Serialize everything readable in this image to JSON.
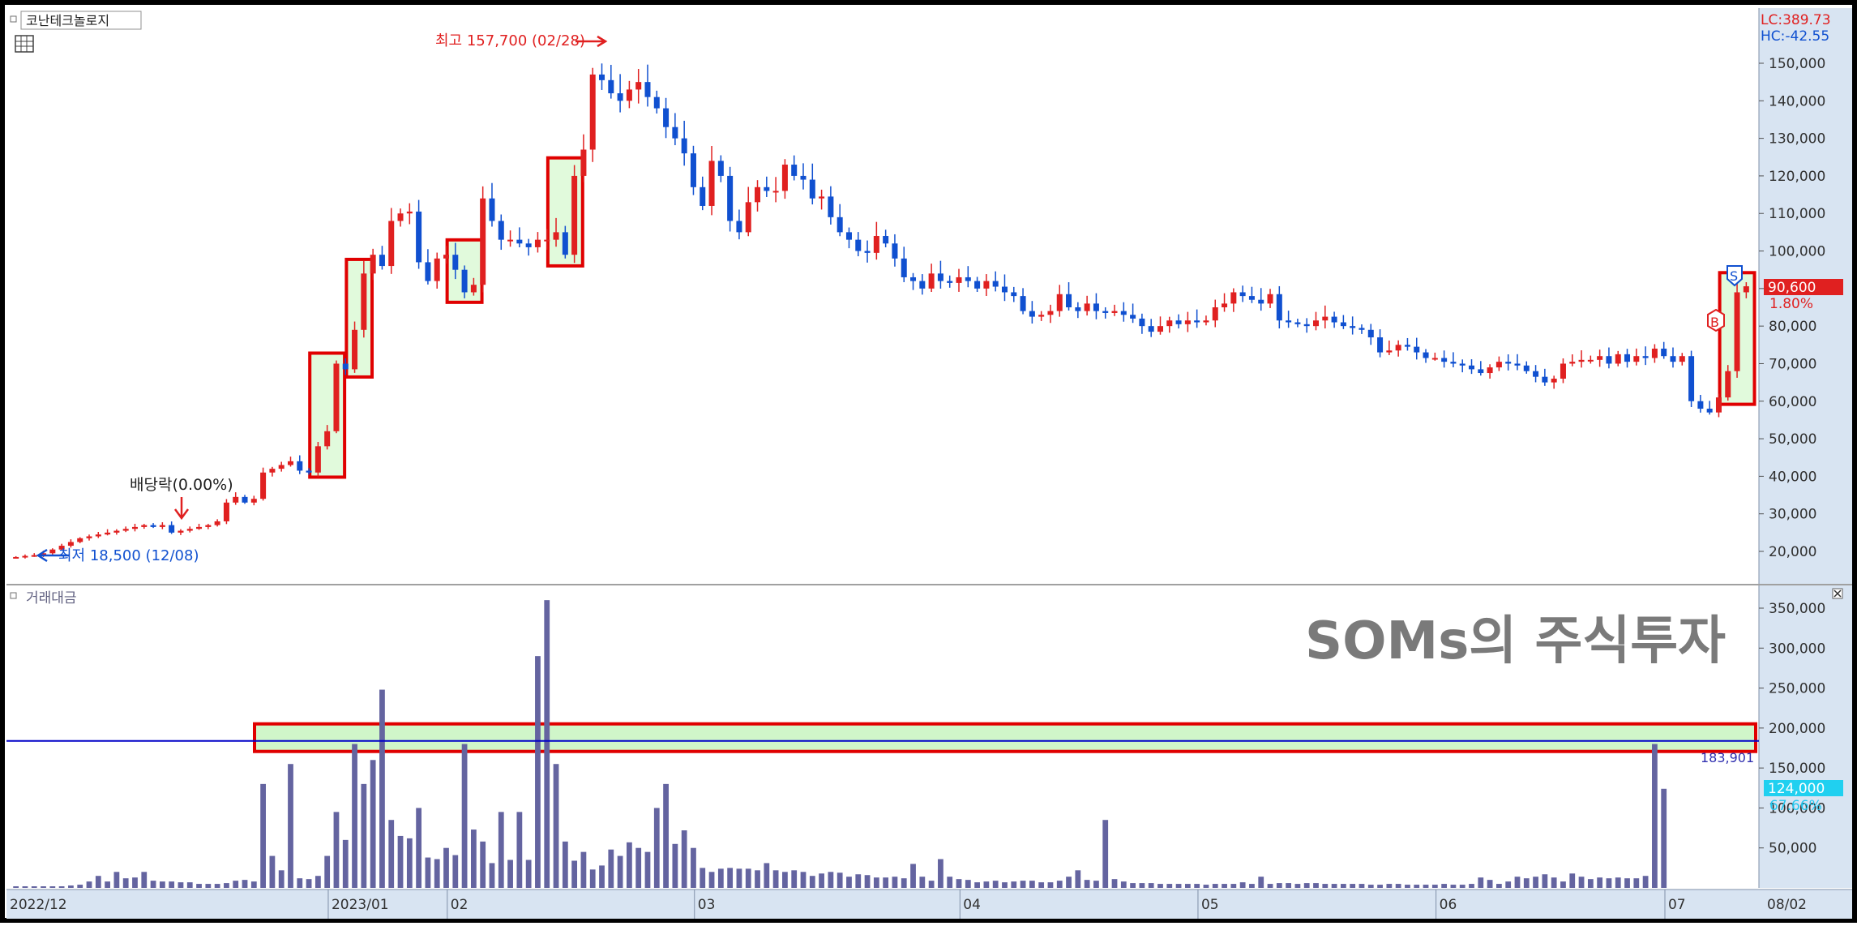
{
  "header": {
    "stock_name": "코난테크놀로지",
    "lc_label": "LC:389.73",
    "hc_label": "HC:-42.55"
  },
  "annotations": {
    "high_label": "최고 157,700 (02/28)",
    "low_label": "최저 18,500 (12/08)",
    "dividend_label": "배당락(0.00%)",
    "buy_marker": "B",
    "sell_marker": "S",
    "watermark": "SOMs의 주식투자"
  },
  "price_panel": {
    "current_price": "90,600",
    "change_pct": "1.80%"
  },
  "volume_panel": {
    "title": "거래대금",
    "line_value": "183,901",
    "current_value": "124,000",
    "current_pct": "67.66%"
  },
  "colors": {
    "up": "#e02020",
    "down": "#1050d0",
    "volume": "#6464a0",
    "highlight_fill": "#c8f5c0",
    "highlight_stroke": "#e00000",
    "reference_line": "#0000c8",
    "axis_bg": "#d8e4f2"
  },
  "chart_data": [
    {
      "type": "candlestick",
      "title": "",
      "x_tick_labels": [
        "2022/12",
        "2023/01",
        "02",
        "03",
        "04",
        "05",
        "06",
        "07",
        "08",
        "08/02"
      ],
      "y_tick_labels": [
        "150,000",
        "140,000",
        "130,000",
        "120,000",
        "110,000",
        "100,000",
        "90,000",
        "80,000",
        "70,000",
        "60,000",
        "50,000",
        "40,000",
        "30,000",
        "20,000"
      ],
      "ylim": [
        12000,
        160000
      ],
      "high": 157700,
      "low": 18500,
      "last": 90600,
      "closes": [
        18500,
        18800,
        19000,
        19500,
        20500,
        21500,
        22500,
        23500,
        24000,
        24500,
        25000,
        25500,
        26000,
        26500,
        27000,
        26500,
        27000,
        25000,
        25500,
        26000,
        26500,
        27000,
        28000,
        33000,
        34500,
        33000,
        34000,
        41000,
        42000,
        43000,
        44000,
        41500,
        41000,
        48000,
        52000,
        70000,
        68500,
        79000,
        94000,
        99000,
        96000,
        108000,
        110000,
        110500,
        97000,
        92000,
        98000,
        99000,
        95000,
        89000,
        91000,
        114000,
        108000,
        103000,
        103000,
        102000,
        101000,
        103000,
        103000,
        105000,
        99000,
        120000,
        127000,
        147000,
        145500,
        142000,
        140000,
        143000,
        145000,
        141000,
        138000,
        133000,
        130000,
        126000,
        117000,
        112000,
        124000,
        120000,
        108000,
        105000,
        113000,
        117000,
        116000,
        116000,
        123000,
        120000,
        119000,
        114000,
        114500,
        109000,
        105000,
        103000,
        100000,
        99500,
        104000,
        102000,
        98000,
        93000,
        92000,
        90000,
        94000,
        92000,
        91500,
        93000,
        92000,
        90000,
        92000,
        90500,
        89000,
        88000,
        84000,
        82500,
        83000,
        84000,
        88500,
        85000,
        84000,
        86000,
        84000,
        83500,
        84000,
        83000,
        82000,
        80000,
        78500,
        80000,
        81500,
        80500,
        81500,
        81000,
        81500,
        85000,
        86000,
        89000,
        88000,
        87000,
        86000,
        88500,
        81500,
        81000,
        80500,
        80000,
        81500,
        82500,
        81000,
        80000,
        79500,
        79000,
        77000,
        73000,
        73500,
        75000,
        74500,
        73000,
        71500,
        71500,
        70500,
        70000,
        69500,
        68500,
        67500,
        69000,
        70500,
        70000,
        69500,
        68000,
        66500,
        65000,
        66000,
        70000,
        70500,
        71000,
        71000,
        72000,
        70000,
        72500,
        70500,
        72000,
        71500,
        74000,
        72000,
        70500,
        72000,
        60000,
        58000,
        57000,
        61000,
        68000,
        89000,
        90600
      ],
      "y_tick_values": [
        150000,
        140000,
        130000,
        120000,
        110000,
        100000,
        90000,
        80000,
        70000,
        60000,
        50000,
        40000,
        30000,
        20000
      ]
    },
    {
      "type": "bar",
      "title": "거래대금",
      "y_tick_labels": [
        "350,000",
        "300,000",
        "250,000",
        "200,000",
        "150,000",
        "100,000",
        "50,000"
      ],
      "y_tick_values": [
        350000,
        300000,
        250000,
        200000,
        150000,
        100000,
        50000
      ],
      "ylim": [
        0,
        370000
      ],
      "reference_line": 183901,
      "values": [
        2000,
        2000,
        2000,
        2000,
        2000,
        2000,
        3000,
        4000,
        8000,
        15000,
        8000,
        20000,
        12000,
        13000,
        20000,
        9000,
        8000,
        8000,
        7000,
        7000,
        5000,
        5000,
        5000,
        6000,
        9000,
        10000,
        8000,
        130000,
        40000,
        22000,
        155000,
        12000,
        11000,
        15000,
        40000,
        95000,
        60000,
        180000,
        130000,
        160000,
        248000,
        85000,
        65000,
        62000,
        100000,
        38000,
        36000,
        50000,
        41000,
        180000,
        73000,
        58000,
        31000,
        95000,
        35000,
        95000,
        35000,
        290000,
        360000,
        155000,
        58000,
        34000,
        45000,
        23000,
        28000,
        48000,
        40000,
        57000,
        50000,
        45000,
        100000,
        130000,
        55000,
        72000,
        50000,
        25000,
        20000,
        24000,
        25000,
        24000,
        24000,
        22000,
        31000,
        22000,
        20000,
        22000,
        20000,
        15000,
        18000,
        20000,
        19000,
        14000,
        17000,
        16000,
        13000,
        13000,
        14000,
        12000,
        30000,
        14000,
        9000,
        36000,
        14000,
        11000,
        10000,
        7000,
        8000,
        9000,
        7000,
        8000,
        9000,
        9000,
        7000,
        7000,
        9000,
        14000,
        22000,
        10000,
        9000,
        85000,
        11000,
        8000,
        6000,
        6000,
        6000,
        5000,
        5000,
        5000,
        5000,
        5000,
        4000,
        5000,
        5000,
        5000,
        7000,
        5000,
        14000,
        5000,
        6000,
        6000,
        5000,
        6000,
        6000,
        5000,
        5000,
        5000,
        5000,
        5000,
        4000,
        4000,
        5000,
        5000,
        4000,
        4000,
        4000,
        4000,
        5000,
        4000,
        4000,
        5000,
        13000,
        10000,
        5000,
        8000,
        14000,
        12000,
        14000,
        17000,
        13000,
        8000,
        18000,
        14000,
        11000,
        13000,
        12000,
        13000,
        12000,
        12000,
        15000,
        180000,
        124000
      ]
    }
  ]
}
